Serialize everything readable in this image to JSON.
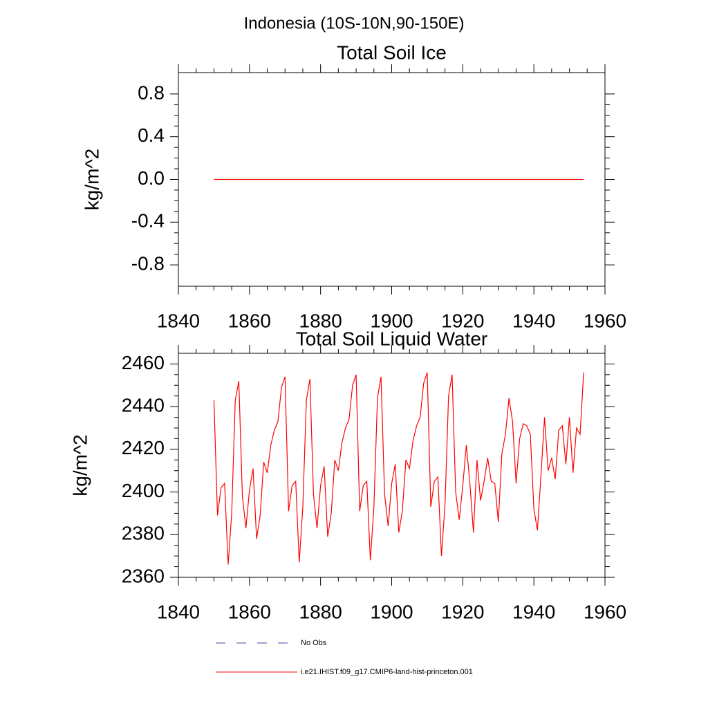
{
  "title": "Indonesia (10S-10N,90-150E)",
  "legend": [
    {
      "name": "No Obs",
      "color": "#3b4a9a",
      "dash": true
    },
    {
      "name": "i.e21.IHIST.f09_g17.CMIP6-land-hist-princeton.001",
      "color": "#ff0000",
      "dash": false
    }
  ],
  "chart_data": [
    {
      "type": "line",
      "title": "Total Soil Ice",
      "y_label": "kg/m^2",
      "xlim": [
        1840,
        1960
      ],
      "xticks": [
        1840,
        1860,
        1880,
        1900,
        1920,
        1940,
        1960
      ],
      "ylim": [
        -1.0,
        1.0
      ],
      "yticks": [
        -0.8,
        -0.4,
        {
          "value": 0,
          "label": "0.0"
        },
        0.4,
        0.8
      ],
      "x": [
        1850,
        1851,
        1852,
        1853,
        1854,
        1855,
        1856,
        1857,
        1858,
        1859,
        1860,
        1861,
        1862,
        1863,
        1864,
        1865,
        1866,
        1867,
        1868,
        1869,
        1870,
        1871,
        1872,
        1873,
        1874,
        1875,
        1876,
        1877,
        1878,
        1879,
        1880,
        1881,
        1882,
        1883,
        1884,
        1885,
        1886,
        1887,
        1888,
        1889,
        1890,
        1891,
        1892,
        1893,
        1894,
        1895,
        1896,
        1897,
        1898,
        1899,
        1900,
        1901,
        1902,
        1903,
        1904,
        1905,
        1906,
        1907,
        1908,
        1909,
        1910,
        1911,
        1912,
        1913,
        1914,
        1915,
        1916,
        1917,
        1918,
        1919,
        1920,
        1921,
        1922,
        1923,
        1924,
        1925,
        1926,
        1927,
        1928,
        1929,
        1930,
        1931,
        1932,
        1933,
        1934,
        1935,
        1936,
        1937,
        1938,
        1939,
        1940,
        1941,
        1942,
        1943,
        1944,
        1945,
        1946,
        1947,
        1948,
        1949,
        1950,
        1951,
        1952,
        1953,
        1954
      ],
      "series": [
        {
          "color": "#ff0000",
          "values": [
            0,
            0,
            0,
            0,
            0,
            0,
            0,
            0,
            0,
            0,
            0,
            0,
            0,
            0,
            0,
            0,
            0,
            0,
            0,
            0,
            0,
            0,
            0,
            0,
            0,
            0,
            0,
            0,
            0,
            0,
            0,
            0,
            0,
            0,
            0,
            0,
            0,
            0,
            0,
            0,
            0,
            0,
            0,
            0,
            0,
            0,
            0,
            0,
            0,
            0,
            0,
            0,
            0,
            0,
            0,
            0,
            0,
            0,
            0,
            0,
            0,
            0,
            0,
            0,
            0,
            0,
            0,
            0,
            0,
            0,
            0,
            0,
            0,
            0,
            0,
            0,
            0,
            0,
            0,
            0,
            0,
            0,
            0,
            0,
            0,
            0,
            0,
            0,
            0,
            0,
            0,
            0,
            0,
            0,
            0,
            0,
            0,
            0,
            0,
            0,
            0,
            0,
            0,
            0,
            0
          ]
        }
      ]
    },
    {
      "type": "line",
      "title": "Total Soil Liquid Water",
      "y_label": "kg/m^2",
      "xlim": [
        1840,
        1960
      ],
      "xticks": [
        1840,
        1860,
        1880,
        1900,
        1920,
        1940,
        1960
      ],
      "ylim": [
        2360,
        2465
      ],
      "yticks": [
        2360,
        2380,
        2400,
        2420,
        2440,
        2460
      ],
      "x": [
        1850,
        1851,
        1852,
        1853,
        1854,
        1855,
        1856,
        1857,
        1858,
        1859,
        1860,
        1861,
        1862,
        1863,
        1864,
        1865,
        1866,
        1867,
        1868,
        1869,
        1870,
        1871,
        1872,
        1873,
        1874,
        1875,
        1876,
        1877,
        1878,
        1879,
        1880,
        1881,
        1882,
        1883,
        1884,
        1885,
        1886,
        1887,
        1888,
        1889,
        1890,
        1891,
        1892,
        1893,
        1894,
        1895,
        1896,
        1897,
        1898,
        1899,
        1900,
        1901,
        1902,
        1903,
        1904,
        1905,
        1906,
        1907,
        1908,
        1909,
        1910,
        1911,
        1912,
        1913,
        1914,
        1915,
        1916,
        1917,
        1918,
        1919,
        1920,
        1921,
        1922,
        1923,
        1924,
        1925,
        1926,
        1927,
        1928,
        1929,
        1930,
        1931,
        1932,
        1933,
        1934,
        1935,
        1936,
        1937,
        1938,
        1939,
        1940,
        1941,
        1942,
        1943,
        1944,
        1945,
        1946,
        1947,
        1948,
        1949,
        1950,
        1951,
        1952,
        1953,
        1954
      ],
      "series": [
        {
          "color": "#ff0000",
          "values": [
            2443,
            2389,
            2402,
            2404,
            2366,
            2390,
            2443,
            2452,
            2398,
            2383,
            2401,
            2411,
            2378,
            2389,
            2414,
            2409,
            2422,
            2429,
            2433,
            2449,
            2454,
            2391,
            2403,
            2405,
            2367,
            2393,
            2443,
            2453,
            2399,
            2383,
            2403,
            2412,
            2379,
            2390,
            2415,
            2410,
            2423,
            2430,
            2434,
            2450,
            2455,
            2391,
            2403,
            2405,
            2368,
            2393,
            2444,
            2454,
            2399,
            2384,
            2404,
            2413,
            2381,
            2391,
            2415,
            2411,
            2424,
            2431,
            2435,
            2451,
            2456,
            2393,
            2405,
            2407,
            2370,
            2394,
            2445,
            2455,
            2400,
            2387,
            2403,
            2422,
            2404,
            2381,
            2415,
            2396,
            2405,
            2416,
            2405,
            2404,
            2386,
            2418,
            2427,
            2444,
            2433,
            2404,
            2425,
            2432,
            2431,
            2427,
            2392,
            2382,
            2408,
            2435,
            2410,
            2416,
            2406,
            2429,
            2431,
            2413,
            2435,
            2409,
            2430,
            2427,
            2456
          ]
        }
      ]
    }
  ]
}
